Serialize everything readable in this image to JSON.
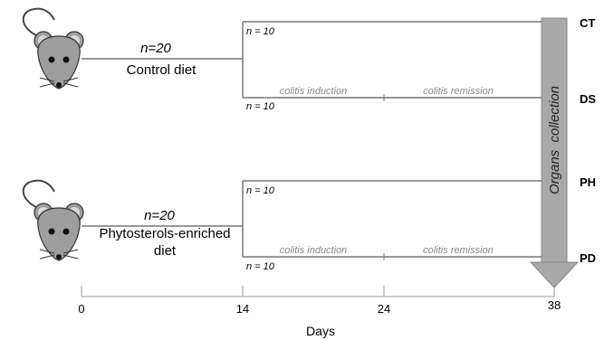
{
  "groups": [
    {
      "n": "n=20",
      "diet": "Control diet"
    },
    {
      "n": "n=20",
      "diet_line1": "Phytosterols-enriched",
      "diet_line2": "diet"
    }
  ],
  "branch_n": "n = 10",
  "phases": {
    "induction": "colitis induction",
    "remission": "colitis remission"
  },
  "collection": "Organs  collection",
  "endpoints": [
    "CT",
    "DS",
    "PH",
    "PD"
  ],
  "axis": {
    "ticks": [
      "0",
      "14",
      "24",
      "38"
    ],
    "label": "Days"
  }
}
